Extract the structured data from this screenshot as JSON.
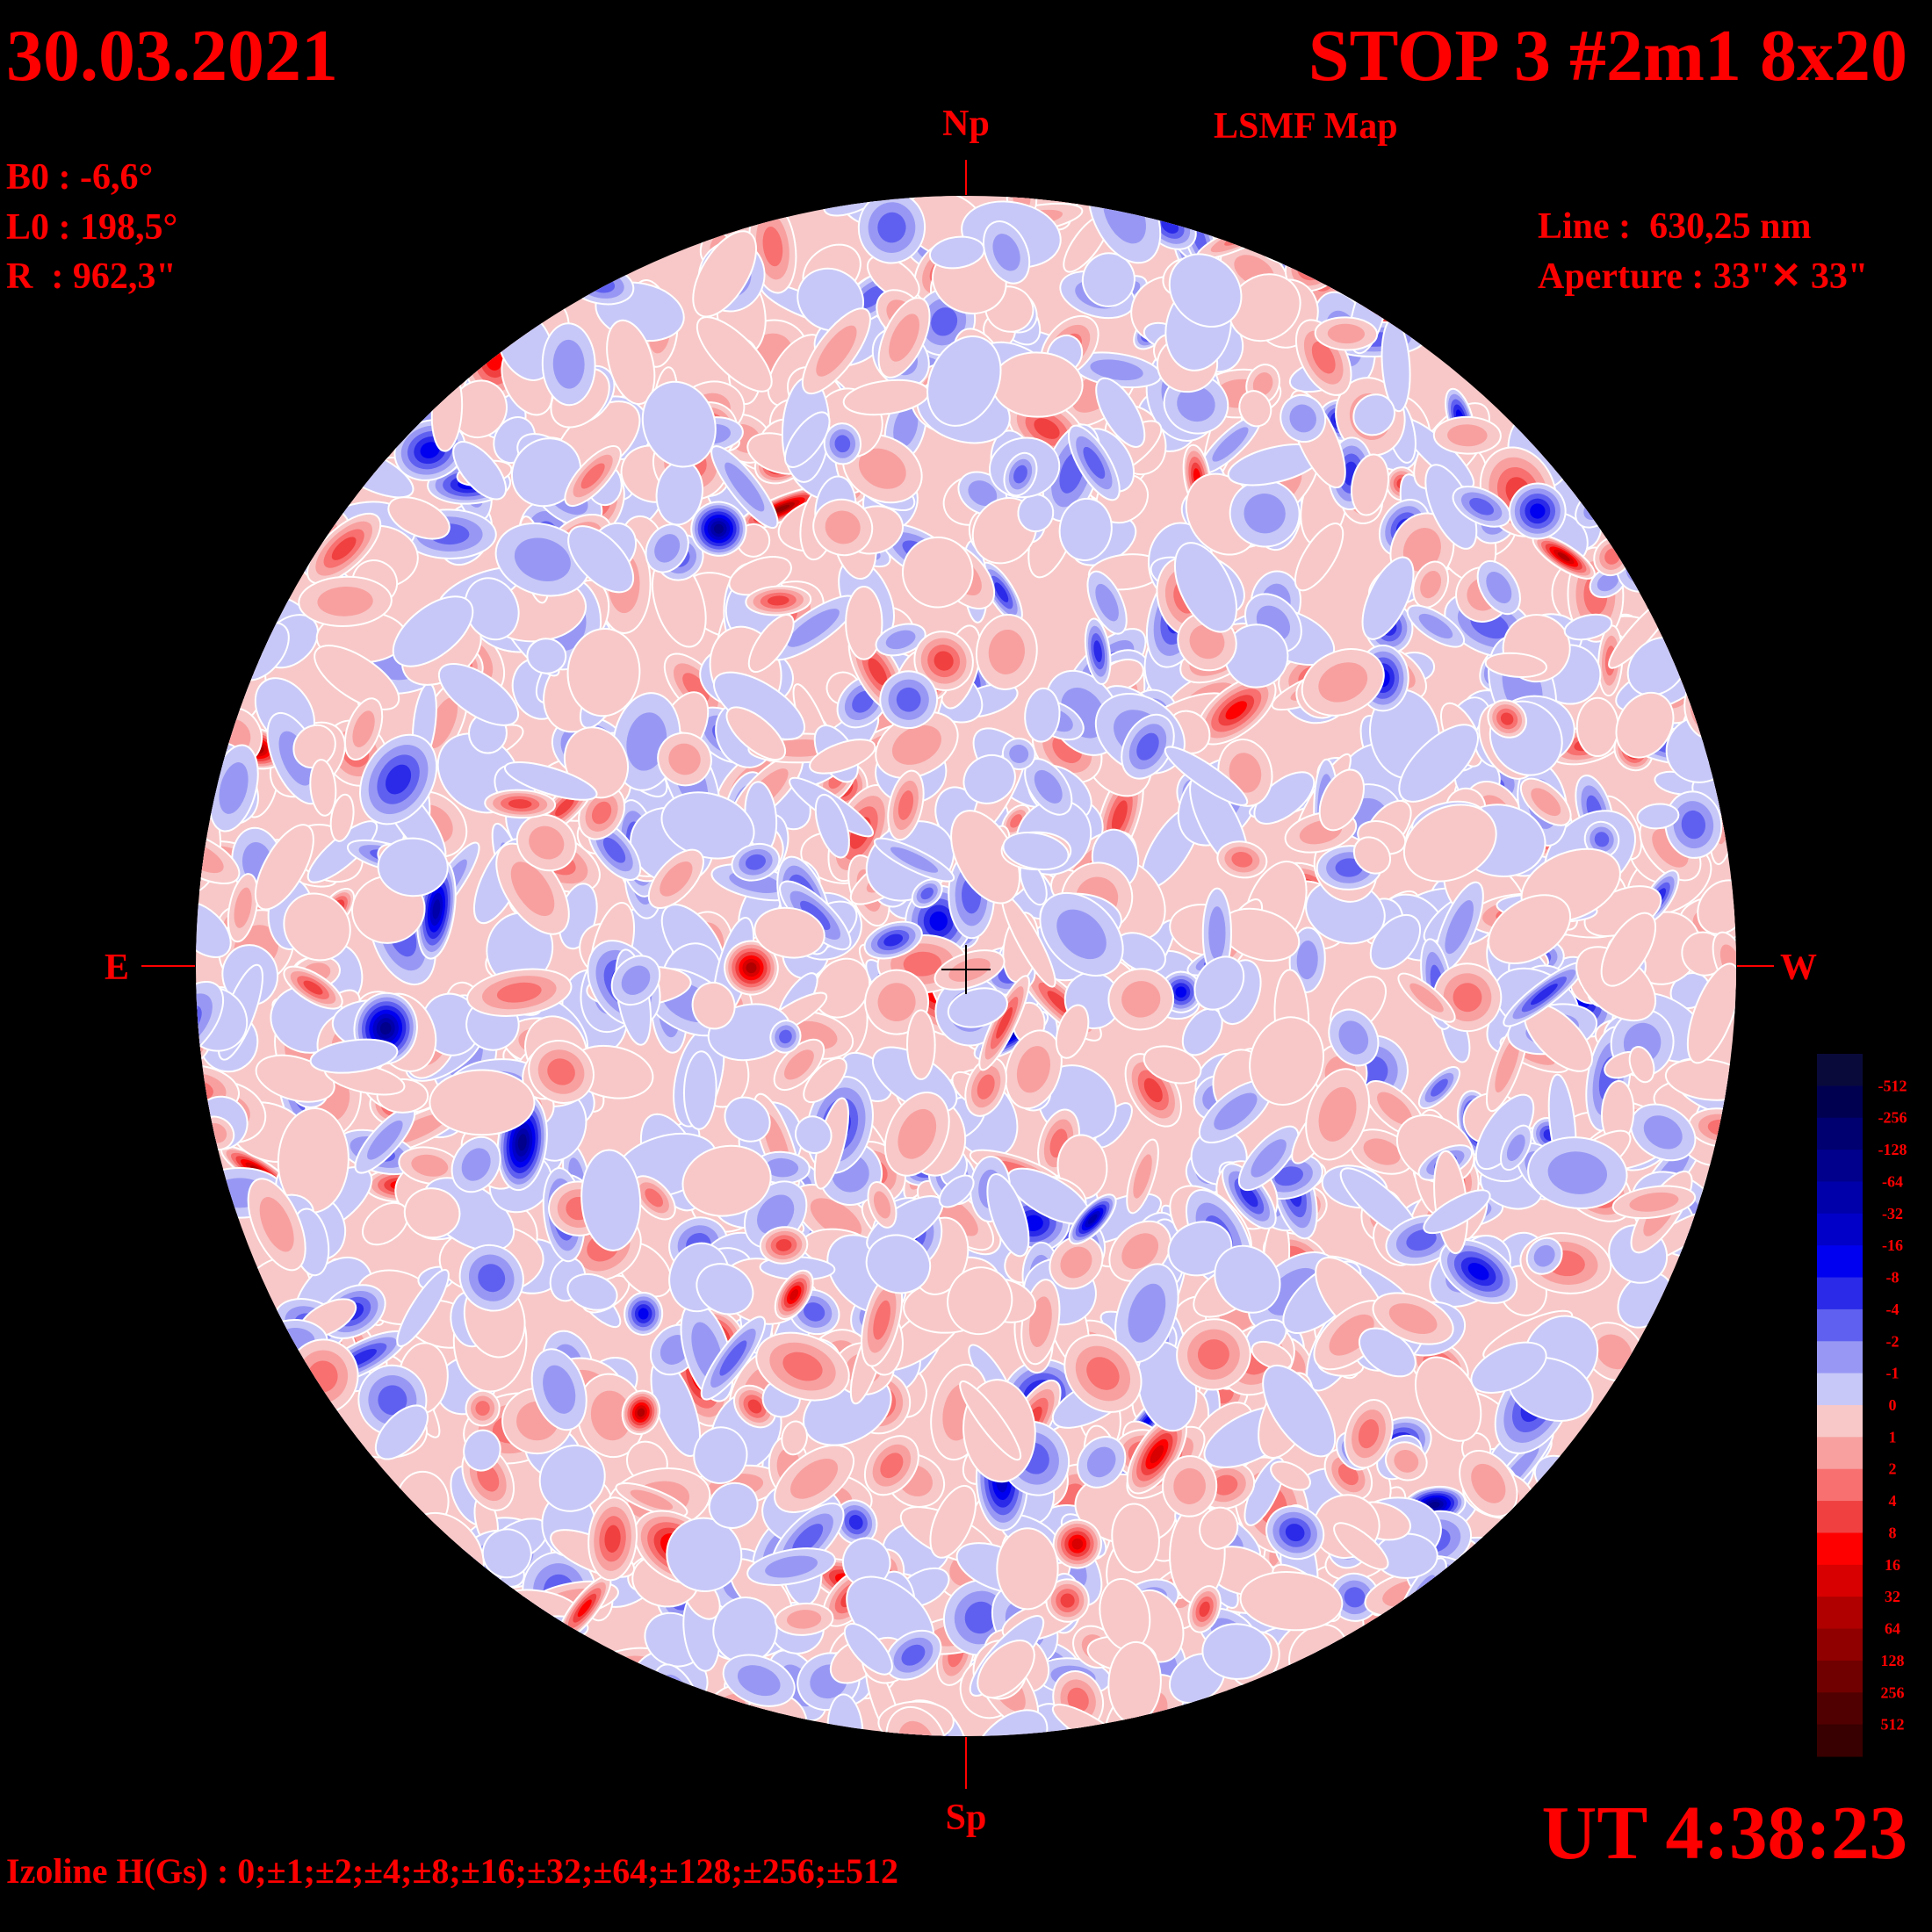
{
  "header": {
    "date": "30.03.2021",
    "title": "STOP 3 #2m1 8x20",
    "subtitle": "LSMF  Map",
    "time": "UT 4:38:23"
  },
  "parameters": {
    "left": [
      "B0 : -6,6°",
      "L0 : 198,5°",
      "R  : 962,3\""
    ],
    "right": [
      "Line :  630,25 nm",
      "Aperture : 33\"✕ 33\""
    ]
  },
  "directions": {
    "north": "Np",
    "south": "Sp",
    "east": "E",
    "west": "W"
  },
  "footer": "Izoline H(Gs) : 0;±1;±2;±4;±8;±16;±32;±64;±128;±256;±512",
  "legend": {
    "labels": [
      "-512",
      "-256",
      "-128",
      "-64",
      "-32",
      "-16",
      "-8",
      "-4",
      "-2",
      "-1",
      "0",
      "1",
      "2",
      "4",
      "8",
      "16",
      "32",
      "64",
      "128",
      "256",
      "512"
    ],
    "band_colors": [
      "#0a0a3a",
      "#000050",
      "#000070",
      "#00008c",
      "#0000aa",
      "#0000c8",
      "#0000f0",
      "#2a2ae8",
      "#6060f0",
      "#9898f4",
      "#c8c8f8",
      "#f8c8c8",
      "#f8a0a0",
      "#f87070",
      "#f04040",
      "#ff0000",
      "#d80000",
      "#b00000",
      "#900000",
      "#700000",
      "#500000",
      "#380000"
    ]
  }
}
